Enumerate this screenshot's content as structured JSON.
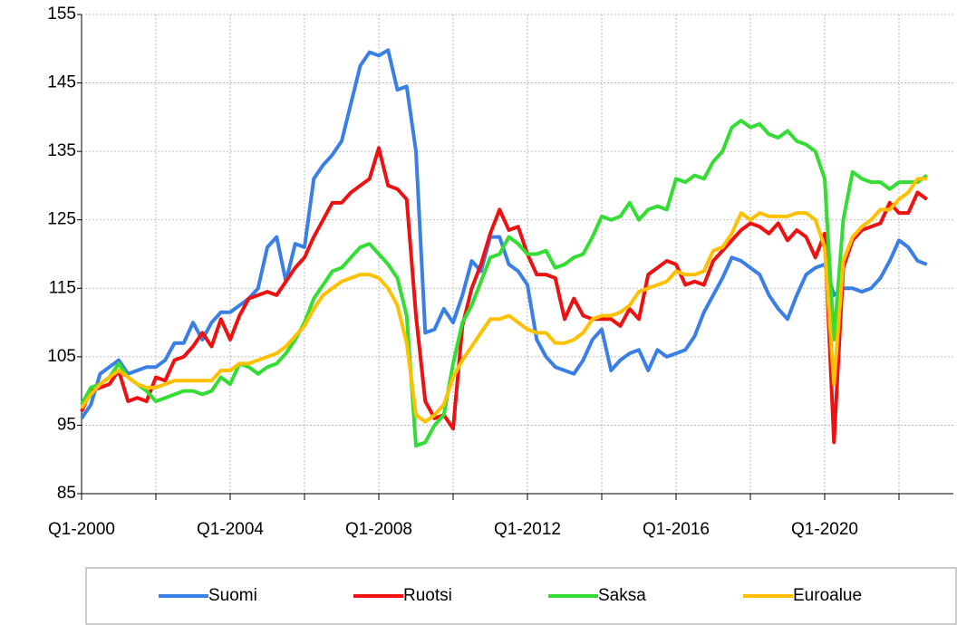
{
  "chart_data": {
    "type": "line",
    "categories": [
      "Q1-2000",
      null,
      null,
      null,
      null,
      null,
      null,
      null,
      null,
      null,
      null,
      null,
      null,
      null,
      null,
      null,
      "Q1-2004",
      null,
      null,
      null,
      null,
      null,
      null,
      null,
      null,
      null,
      null,
      null,
      null,
      null,
      null,
      null,
      "Q1-2008",
      null,
      null,
      null,
      null,
      null,
      null,
      null,
      null,
      null,
      null,
      null,
      null,
      null,
      null,
      null,
      "Q1-2012",
      null,
      null,
      null,
      null,
      null,
      null,
      null,
      null,
      null,
      null,
      null,
      null,
      null,
      null,
      null,
      "Q1-2016",
      null,
      null,
      null,
      null,
      null,
      null,
      null,
      null,
      null,
      null,
      null,
      null,
      null,
      null,
      null,
      "Q1-2020",
      null,
      null,
      null,
      null,
      null,
      null,
      null,
      null,
      null,
      null,
      null
    ],
    "series": [
      {
        "name": "Suomi",
        "color": "#3a7fe6",
        "values": [
          96,
          98,
          102.5,
          103.5,
          104.5,
          102.5,
          103,
          103.5,
          103.5,
          104.5,
          107,
          107,
          110,
          107.5,
          110,
          111.5,
          111.5,
          112.5,
          113.5,
          115,
          121,
          122.5,
          116,
          121.5,
          121,
          131,
          133,
          134.5,
          136.5,
          142,
          147.5,
          149.5,
          149,
          149.8,
          144,
          144.5,
          135,
          108.5,
          109,
          112,
          110,
          114,
          119,
          117.5,
          122.5,
          122.5,
          118.5,
          117.5,
          115.5,
          107.5,
          105,
          103.5,
          103,
          102.5,
          104.5,
          107.5,
          109,
          103,
          104.5,
          105.5,
          106,
          103,
          106,
          105,
          105.5,
          106,
          108,
          111.5,
          114,
          116.5,
          119.5,
          119,
          118,
          117,
          114,
          112,
          110.5,
          114,
          117,
          118,
          118.5,
          114,
          115,
          115,
          114.5,
          115,
          116.5,
          119,
          122,
          121,
          119,
          118.5
        ]
      },
      {
        "name": "Ruotsi",
        "color": "#ee1111",
        "values": [
          97,
          100,
          100.5,
          101,
          103,
          98.5,
          99,
          98.5,
          102,
          101.5,
          104.5,
          105,
          106.5,
          108.5,
          106.5,
          110.5,
          107.5,
          111,
          113.5,
          114,
          114.5,
          114,
          116,
          118,
          119.5,
          122.5,
          125,
          127.5,
          127.5,
          129,
          130,
          131,
          135.5,
          130,
          129.5,
          128,
          111,
          98.5,
          96,
          96.5,
          94.5,
          109.5,
          115,
          118.5,
          123,
          126.5,
          123.5,
          124,
          120,
          117,
          117,
          116.5,
          110.5,
          113.5,
          111,
          110.5,
          110.5,
          110.5,
          109.5,
          112,
          110.5,
          117,
          118,
          119,
          118.5,
          115.5,
          116,
          115.5,
          119,
          120.5,
          122,
          123.5,
          124.5,
          124,
          123,
          124.5,
          122,
          123.5,
          122.5,
          119.5,
          123,
          92.5,
          118,
          122,
          123.5,
          124,
          124.5,
          127.5,
          126,
          126,
          129,
          128
        ]
      },
      {
        "name": "Saksa",
        "color": "#33dd33",
        "values": [
          98,
          100.5,
          101,
          102,
          104,
          102,
          101,
          100,
          98.5,
          99,
          99.5,
          100,
          100,
          99.5,
          100,
          102,
          101,
          104,
          103.5,
          102.5,
          103.5,
          104,
          105.5,
          107.5,
          110,
          113.5,
          115.5,
          117.5,
          118,
          119.5,
          121,
          121.5,
          120,
          118.5,
          116.5,
          111,
          92,
          92.5,
          95,
          96.5,
          104,
          110,
          112.5,
          116,
          119.5,
          120,
          122.5,
          121.5,
          120,
          120,
          120.5,
          118,
          118.5,
          119.5,
          120,
          122.5,
          125.5,
          125,
          125.5,
          127.5,
          125,
          126.5,
          127,
          126.5,
          131,
          130.5,
          131.5,
          131,
          133.5,
          135,
          138.5,
          139.5,
          138.5,
          139,
          137.5,
          137,
          138,
          136.5,
          136,
          135,
          131,
          107.5,
          125,
          132,
          131,
          130.5,
          130.5,
          129.5,
          130.5,
          130.5,
          130.5,
          131.5
        ]
      },
      {
        "name": "Euroalue",
        "color": "#ffc000",
        "values": [
          97.5,
          99.5,
          101,
          102,
          103,
          102,
          101,
          100.5,
          100.5,
          101,
          101.5,
          101.5,
          101.5,
          101.5,
          101.5,
          103,
          103,
          104,
          104,
          104.5,
          105,
          105.5,
          106.5,
          108,
          109.5,
          112,
          114,
          115,
          116,
          116.5,
          117,
          117,
          116.5,
          115,
          112.5,
          107,
          96.5,
          95.5,
          96.5,
          98,
          102,
          104.5,
          106.5,
          108.5,
          110.5,
          110.5,
          111,
          110,
          109,
          108.5,
          108.5,
          107,
          107,
          107.5,
          108.5,
          110.5,
          111,
          111,
          111.5,
          112.5,
          114.5,
          115,
          115.5,
          116,
          117.5,
          117,
          117,
          117.5,
          120.5,
          121,
          123,
          126,
          125,
          126,
          125.5,
          125.5,
          125.5,
          126,
          126,
          125,
          121,
          101,
          119,
          122.5,
          124,
          125,
          126.5,
          126.5,
          128,
          129,
          131,
          131
        ]
      }
    ],
    "ylim": [
      85,
      155
    ],
    "yticks": [
      85,
      95,
      105,
      115,
      125,
      135,
      145,
      155
    ],
    "grid": true,
    "legend": "bottom"
  }
}
